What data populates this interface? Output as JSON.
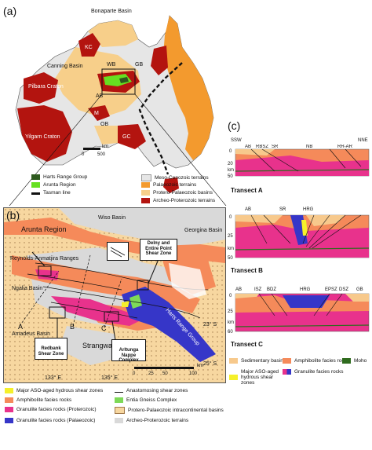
{
  "panel_a": {
    "label": "(a)",
    "places": {
      "bonaparte_basin": "Bonaparte Basin",
      "kc": "KC",
      "canning_basin": "Canning Basin",
      "wb": "WB",
      "gb": "GB",
      "pilbara": "Pilbara Craton",
      "ab": "AB",
      "m": "M",
      "ob": "OB",
      "yilgarn": "Yilgarn Craton",
      "gc": "GC"
    },
    "scale": {
      "zero": "0",
      "max": "500",
      "unit": "km"
    },
    "legend": [
      {
        "label": "Harts Range Group",
        "color": "#2d5a1e"
      },
      {
        "label": "Arunta Region",
        "color": "#66e020"
      },
      {
        "label": "Tasman line",
        "color": "#111111"
      },
      {
        "label": "Meso-Cenozoic terrains",
        "color": "#e6e6e6"
      },
      {
        "label": "Palaeozoic terrains",
        "color": "#f39a2e"
      },
      {
        "label": "Protero-Palaeozoic basins",
        "color": "#f7cf8a"
      },
      {
        "label": "Archeo-Proterozoic terrains",
        "color": "#b3140f"
      }
    ]
  },
  "panel_b": {
    "label": "(b)",
    "places": {
      "arunta": "Arunta Region",
      "wiso": "Wiso Basin",
      "georgina": "Georgina Basin",
      "reynolds": "Reynolds-Anmatjira Ranges",
      "ngalia": "Ngalia Basin",
      "amadeus": "Amadeus Basin",
      "strangways": "Strangways Range",
      "harts": "Harts Range Group",
      "a": "A",
      "b": "B",
      "c": "C"
    },
    "boxes": {
      "delny": "Delny and Entire Point Shear Zone",
      "redbank": "Redbank Shear Zone",
      "arltunga": "Arltunga Nappe Complex"
    },
    "lat1": "23° S",
    "lat2": "25° S",
    "lon1": "133° E",
    "lon2": "135° E",
    "scale": {
      "s0": "0",
      "s1": "25",
      "s2": "50",
      "s3": "100",
      "unit": "km"
    },
    "legend": [
      {
        "label": "Major ASO-aged hydrous shear zones",
        "color": "#f5f02a"
      },
      {
        "label": "Amphibolite facies rocks",
        "color": "#f58a5a"
      },
      {
        "label": "Granulite facies rocks (Proterozoic)",
        "color": "#e8328c"
      },
      {
        "label": "Granulite facies rocks (Palaeozoic)",
        "color": "#3636c8"
      },
      {
        "label": "Anastomosing shear zones",
        "color": "#111111"
      },
      {
        "label": "Entia Gneiss Complex",
        "color": "#7ed957"
      },
      {
        "label": "Protero-Palaeozoic intracontinental basins",
        "color": "#f7d7a0"
      },
      {
        "label": "Archeo-Proterozoic terrains",
        "color": "#d9d9d9"
      }
    ]
  },
  "panel_c": {
    "label": "(c)",
    "ssw": "SSW",
    "nne": "NNE",
    "km": "km",
    "transects": [
      {
        "title": "Transect A",
        "labels": [
          "AB",
          "RBSZ",
          "SR",
          "NB",
          "RR-AR"
        ],
        "ticks": [
          "0",
          "20",
          "50"
        ]
      },
      {
        "title": "Transect B",
        "labels": [
          "AB",
          "SR",
          "HRG"
        ],
        "ticks": [
          "0",
          "25",
          "50"
        ]
      },
      {
        "title": "Transect C",
        "labels": [
          "AB",
          "ISZ",
          "BDZ",
          "HRG",
          "EPSZ",
          "DSZ",
          "GB"
        ],
        "ticks": [
          "0",
          "25",
          "60"
        ]
      }
    ],
    "legend": [
      {
        "label": "Sedimentary basins",
        "color": "#f7c98c"
      },
      {
        "label": "Amphibolite facies rocks",
        "color": "#f58a5a"
      },
      {
        "label": "Moho",
        "color": "#2f6b1e"
      },
      {
        "label": "Major ASO-aged hydrous shear zones",
        "color": "#f5f02a"
      },
      {
        "label": "Granulite facies rocks",
        "color": "#e8328c"
      }
    ]
  }
}
